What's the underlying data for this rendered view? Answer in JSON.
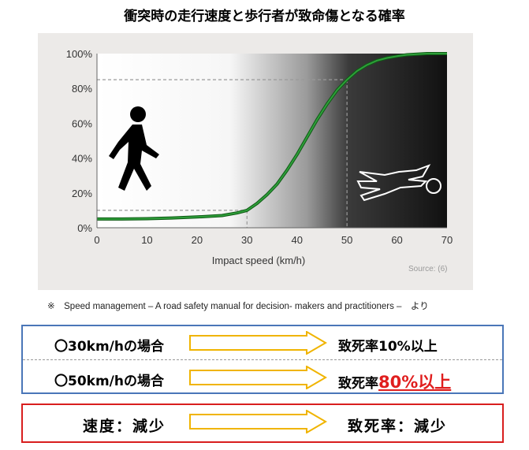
{
  "title": "衝突時の走行速度と歩行者が致命傷となる確率",
  "chart_data": {
    "type": "line",
    "xlabel": "Impact speed (km/h)",
    "ylabel": "",
    "xlim": [
      0,
      70
    ],
    "ylim": [
      0,
      100
    ],
    "xticks": [
      "0",
      "10",
      "20",
      "30",
      "40",
      "50",
      "60",
      "70"
    ],
    "yticks": [
      "0%",
      "20%",
      "40%",
      "60%",
      "80%",
      "100%"
    ],
    "source": "Source: (6)",
    "series": [
      {
        "x": [
          0,
          5,
          10,
          15,
          20,
          25,
          28,
          30,
          32,
          34,
          36,
          38,
          40,
          42,
          44,
          46,
          48,
          50,
          52,
          54,
          56,
          58,
          60,
          62,
          64,
          66,
          70
        ],
        "y": [
          5,
          5,
          5.2,
          5.6,
          6.2,
          7,
          8.5,
          10,
          14,
          19,
          25,
          33,
          42,
          52,
          62,
          71,
          79,
          85,
          90,
          93.5,
          96,
          97.5,
          98.5,
          99.3,
          99.7,
          100,
          100
        ]
      }
    ],
    "reference_lines": [
      {
        "x": 30,
        "y": 10
      },
      {
        "x": 50,
        "y": 85
      }
    ],
    "colors": {
      "line": "#2e9e3a",
      "line_dark": "#0e5a14",
      "gridline": "#999999"
    }
  },
  "note": "※　Speed management – A road safety manual for decision- makers and practitioners –　より",
  "rows": [
    {
      "left": "〇30km/hの場合",
      "right_prefix": "致死率10%以上",
      "right_highlight": ""
    },
    {
      "left": "〇50km/hの場合",
      "right_prefix": "致死率",
      "right_highlight": "80%以上"
    }
  ],
  "summary": {
    "left": "速度：減少",
    "right": "致死率：減少"
  },
  "colors": {
    "arrow_fill": "#ffffff",
    "arrow_stroke": "#f0b400",
    "blue_border": "#4a76b8",
    "red_border": "#d81e1e",
    "highlight": "#e01e1e"
  },
  "icons": [
    "walking-pedestrian-icon",
    "fallen-pedestrian-icon",
    "right-arrow-icon"
  ]
}
